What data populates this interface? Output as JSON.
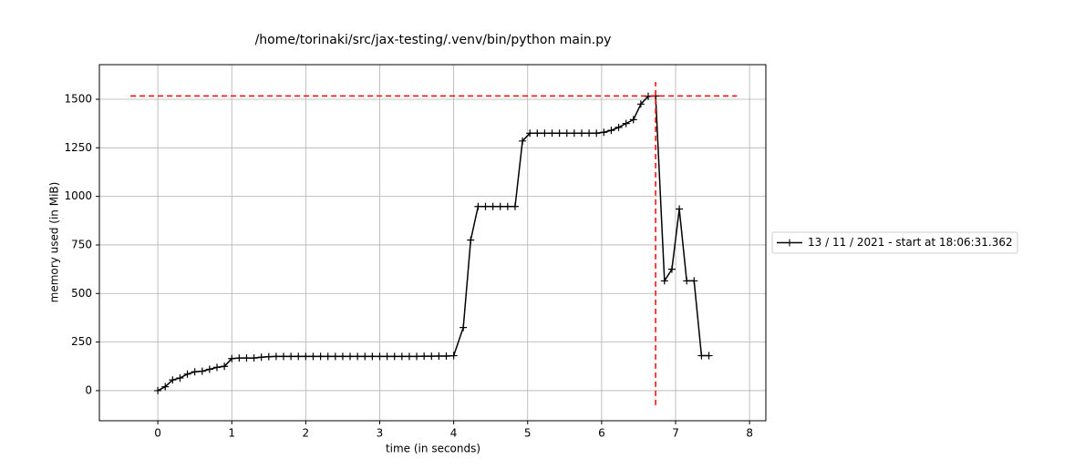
{
  "chart_data": {
    "type": "line",
    "title": "/home/torinaki/src/jax-testing/.venv/bin/python main.py",
    "x_label": "time (in seconds)",
    "y_label": "memory used (in MiB)",
    "x": [
      0,
      0.1,
      0.2,
      0.3,
      0.4,
      0.5,
      0.6,
      0.7,
      0.8,
      0.9,
      1.0,
      1.1,
      1.2,
      1.3,
      1.4,
      1.5,
      1.6,
      1.7,
      1.8,
      1.9,
      2.0,
      2.1,
      2.2,
      2.3,
      2.4,
      2.5,
      2.6,
      2.7,
      2.8,
      2.9,
      3.0,
      3.1,
      3.2,
      3.3,
      3.4,
      3.5,
      3.6,
      3.7,
      3.8,
      3.9,
      4.0,
      4.13,
      4.23,
      4.33,
      4.43,
      4.53,
      4.63,
      4.73,
      4.83,
      4.93,
      5.03,
      5.13,
      5.23,
      5.33,
      5.43,
      5.53,
      5.63,
      5.73,
      5.83,
      5.93,
      6.03,
      6.13,
      6.23,
      6.33,
      6.43,
      6.53,
      6.63,
      6.73,
      6.85,
      6.95,
      7.05,
      7.15,
      7.25,
      7.35,
      7.45
    ],
    "series": [
      {
        "name": "13 / 11 / 2021 - start at 18:06:31.362",
        "color": "#000000",
        "values": [
          0,
          20,
          55,
          65,
          85,
          97,
          100,
          110,
          120,
          125,
          165,
          168,
          168,
          168,
          172,
          175,
          176,
          176,
          176,
          176,
          176,
          176,
          176,
          176,
          176,
          176,
          176,
          176,
          176,
          176,
          176,
          176,
          176,
          176,
          176,
          176,
          177,
          177,
          178,
          178,
          180,
          325,
          775,
          948,
          948,
          948,
          948,
          948,
          948,
          1285,
          1325,
          1325,
          1325,
          1325,
          1325,
          1325,
          1325,
          1325,
          1325,
          1325,
          1330,
          1340,
          1355,
          1375,
          1395,
          1475,
          1515,
          1517,
          565,
          625,
          935,
          565,
          565,
          180,
          180
        ]
      }
    ],
    "max_lines": [
      {
        "color": "#ff0000",
        "x": [
          -0.37,
          7.83
        ],
        "y": [
          1517,
          1517
        ]
      },
      {
        "color": "#ff0000",
        "x": [
          6.73,
          6.73
        ],
        "y": [
          -75,
          1589
        ]
      }
    ],
    "xlim": [
      -0.79,
      8.22
    ],
    "ylim": [
      -155,
      1678
    ],
    "xticks": [
      0,
      1,
      2,
      3,
      4,
      5,
      6,
      7,
      8
    ],
    "yticks": [
      0,
      250,
      500,
      750,
      1000,
      1250,
      1500
    ],
    "grid": true,
    "legend": "outside right"
  }
}
